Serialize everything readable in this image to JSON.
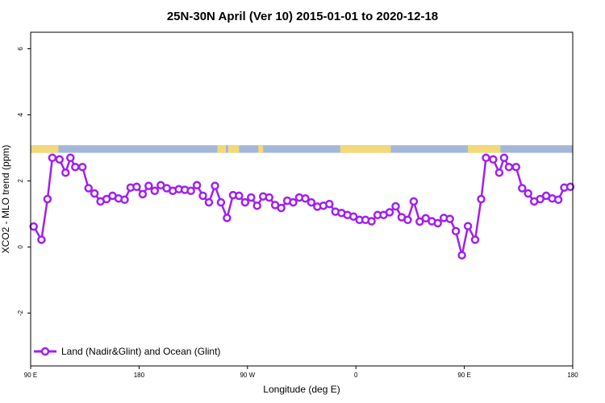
{
  "chart_data": {
    "type": "line",
    "title": "25N-30N April (Ver 10)   2015-01-01 to 2020-12-18",
    "xlabel": "Longitude (deg E)",
    "ylabel": "XCO2 - MLO trend (ppm)",
    "xlim": [
      90,
      540
    ],
    "ylim": [
      -3.6,
      6.5
    ],
    "x_ticks": [
      {
        "value": 90,
        "label": "90 E"
      },
      {
        "value": 180,
        "label": "180"
      },
      {
        "value": 270,
        "label": "90 W"
      },
      {
        "value": 360,
        "label": "0"
      },
      {
        "value": 450,
        "label": "90 E"
      },
      {
        "value": 540,
        "label": "180"
      }
    ],
    "y_ticks": [
      {
        "value": -2,
        "label": "-2"
      },
      {
        "value": 0,
        "label": "0"
      },
      {
        "value": 2,
        "label": "2"
      },
      {
        "value": 4,
        "label": "4"
      },
      {
        "value": 6,
        "label": "6"
      }
    ],
    "grid": false,
    "legend_position": "bottom-left",
    "surface_strip": {
      "y_range": [
        2.85,
        3.08
      ],
      "ocean_color": "#a3b8d8",
      "land_color": "#f3d978",
      "land_segments": [
        [
          90,
          113
        ],
        [
          245,
          252
        ],
        [
          254,
          263
        ],
        [
          279,
          283
        ],
        [
          347,
          389
        ],
        [
          453,
          480
        ]
      ]
    },
    "series": [
      {
        "name": "Land (Nadir&Glint) and Ocean (Glint)",
        "color": "#a020f0",
        "points": [
          [
            92.5,
            0.62
          ],
          [
            99,
            0.22
          ],
          [
            104,
            1.45
          ],
          [
            108,
            2.7
          ],
          [
            114,
            2.65
          ],
          [
            119,
            2.25
          ],
          [
            123,
            2.7
          ],
          [
            127,
            2.42
          ],
          [
            133,
            2.42
          ],
          [
            138,
            1.78
          ],
          [
            143,
            1.62
          ],
          [
            148,
            1.38
          ],
          [
            153,
            1.45
          ],
          [
            158,
            1.55
          ],
          [
            163,
            1.47
          ],
          [
            168,
            1.43
          ],
          [
            173,
            1.8
          ],
          [
            178,
            1.82
          ],
          [
            183,
            1.6
          ],
          [
            188,
            1.85
          ],
          [
            193,
            1.7
          ],
          [
            198,
            1.87
          ],
          [
            203,
            1.78
          ],
          [
            208,
            1.7
          ],
          [
            213,
            1.75
          ],
          [
            218,
            1.73
          ],
          [
            223,
            1.7
          ],
          [
            228,
            1.87
          ],
          [
            233,
            1.55
          ],
          [
            238,
            1.35
          ],
          [
            243,
            1.85
          ],
          [
            248,
            1.35
          ],
          [
            253,
            0.88
          ],
          [
            258,
            1.57
          ],
          [
            263,
            1.55
          ],
          [
            268,
            1.35
          ],
          [
            273,
            1.5
          ],
          [
            278,
            1.25
          ],
          [
            283,
            1.53
          ],
          [
            288,
            1.5
          ],
          [
            293,
            1.27
          ],
          [
            298,
            1.18
          ],
          [
            303,
            1.4
          ],
          [
            308,
            1.35
          ],
          [
            313,
            1.5
          ],
          [
            318,
            1.47
          ],
          [
            323,
            1.35
          ],
          [
            328,
            1.22
          ],
          [
            333,
            1.25
          ],
          [
            338,
            1.3
          ],
          [
            343,
            1.07
          ],
          [
            348,
            1.03
          ],
          [
            353,
            0.97
          ],
          [
            358,
            0.92
          ],
          [
            363,
            0.82
          ],
          [
            368,
            0.82
          ],
          [
            373,
            0.78
          ],
          [
            378,
            0.97
          ],
          [
            383,
            0.97
          ],
          [
            388,
            1.05
          ],
          [
            393,
            1.23
          ],
          [
            398,
            0.9
          ],
          [
            403,
            0.82
          ],
          [
            408,
            1.38
          ],
          [
            413,
            0.77
          ],
          [
            418,
            0.87
          ],
          [
            423,
            0.78
          ],
          [
            428,
            0.72
          ],
          [
            433,
            0.88
          ],
          [
            438,
            0.85
          ],
          [
            443,
            0.48
          ],
          [
            448,
            -0.25
          ],
          [
            453,
            0.63
          ],
          [
            459,
            0.22
          ],
          [
            464,
            1.45
          ],
          [
            468,
            2.7
          ],
          [
            474,
            2.65
          ],
          [
            479,
            2.25
          ],
          [
            483,
            2.7
          ],
          [
            487,
            2.42
          ],
          [
            493,
            2.42
          ],
          [
            498,
            1.78
          ],
          [
            503,
            1.62
          ],
          [
            508,
            1.38
          ],
          [
            513,
            1.45
          ],
          [
            518,
            1.55
          ],
          [
            523,
            1.47
          ],
          [
            528,
            1.43
          ],
          [
            533,
            1.8
          ],
          [
            538,
            1.82
          ]
        ]
      }
    ]
  }
}
